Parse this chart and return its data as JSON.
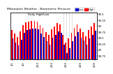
{
  "title": "Milwaukee Weather - Barometric Pressure",
  "subtitle": "Daily High/Low",
  "ylim": [
    28.6,
    30.55
  ],
  "bar_width": 0.42,
  "legend_blue_label": "Low",
  "legend_red_label": "High",
  "background_color": "#ffffff",
  "bar_color_high": "#ff0000",
  "bar_color_low": "#0000cc",
  "dotted_line_indices": [
    18,
    19,
    20,
    21
  ],
  "highs": [
    29.82,
    29.68,
    29.55,
    29.78,
    30.05,
    30.15,
    30.18,
    30.22,
    30.2,
    30.18,
    30.05,
    29.92,
    29.75,
    29.62,
    29.85,
    29.98,
    30.12,
    30.08,
    29.62,
    29.3,
    29.48,
    29.72,
    29.92,
    30.08,
    29.88,
    29.75,
    29.58,
    29.82,
    29.98,
    30.12
  ],
  "lows": [
    29.48,
    29.32,
    29.18,
    29.42,
    29.72,
    29.82,
    29.85,
    29.9,
    29.88,
    29.85,
    29.7,
    29.55,
    29.38,
    29.22,
    29.5,
    29.62,
    29.78,
    29.72,
    29.22,
    28.88,
    29.08,
    29.38,
    29.58,
    29.75,
    29.52,
    29.4,
    29.22,
    29.48,
    29.62,
    29.8
  ],
  "yticks": [
    28.75,
    29.0,
    29.25,
    29.5,
    29.75,
    30.0,
    30.25,
    30.5
  ],
  "ytick_labels": [
    "28.75",
    "29",
    "29.25",
    "29.5",
    "29.75",
    "30",
    "30.25",
    "30.5"
  ],
  "x_tick_positions": [
    0,
    4,
    9,
    14,
    19,
    24,
    29
  ],
  "x_tick_labels": [
    "4/1",
    "4/5",
    "4/10",
    "4/15",
    "4/20",
    "4/25",
    "4/30"
  ]
}
